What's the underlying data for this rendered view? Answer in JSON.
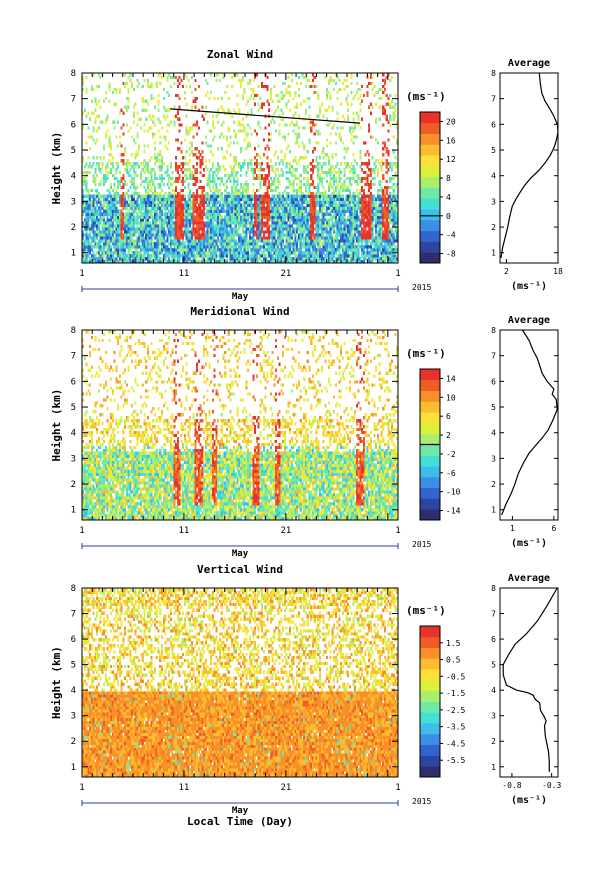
{
  "chart_data": [
    {
      "type": "heatmap",
      "title": "Zonal Wind",
      "ylabel": "Height (km)",
      "ylim": [
        0.6,
        8
      ],
      "yticks": [
        1,
        2,
        3,
        4,
        5,
        6,
        7,
        8
      ],
      "xticks": [
        "1",
        "11",
        "21",
        "1"
      ],
      "month_label": "May",
      "year_label": "2015",
      "colorbar": {
        "unit": "(ms⁻¹)",
        "range": [
          -10,
          22
        ],
        "labels": [
          20,
          16,
          12,
          8,
          4,
          0,
          -4,
          -8
        ],
        "zero_line": 0
      },
      "average": {
        "title": "Average",
        "xlabel": "(ms⁻¹)",
        "xticks": [
          "2",
          "18"
        ],
        "xlim": [
          0,
          18
        ],
        "ylim": [
          0.6,
          8
        ],
        "x": [
          0.3,
          0.8,
          1.6,
          2.4,
          3.0,
          3.8,
          5.0,
          6.2,
          7.5,
          9.5,
          12.0,
          14.0,
          15.6,
          16.8,
          17.5,
          18.0,
          17.8,
          16.8,
          15.5,
          14.0,
          13.0,
          12.5,
          12.2
        ],
        "y": [
          0.8,
          1.2,
          1.6,
          2.0,
          2.4,
          2.8,
          3.1,
          3.35,
          3.6,
          3.9,
          4.2,
          4.5,
          4.8,
          5.1,
          5.4,
          5.7,
          6.0,
          6.3,
          6.6,
          6.9,
          7.2,
          7.6,
          8.0
        ]
      }
    },
    {
      "type": "heatmap",
      "title": "Meridional Wind",
      "ylabel": "Height (km)",
      "ylim": [
        0.6,
        8
      ],
      "yticks": [
        1,
        2,
        3,
        4,
        5,
        6,
        7,
        8
      ],
      "xticks": [
        "1",
        "11",
        "21",
        "1"
      ],
      "month_label": "May",
      "year_label": "2015",
      "colorbar": {
        "unit": "(ms⁻¹)",
        "range": [
          -16,
          16
        ],
        "labels": [
          14,
          10,
          6,
          2,
          -2,
          -6,
          -10,
          -14
        ],
        "zero_line": 0
      },
      "average": {
        "title": "Average",
        "xlabel": "(ms⁻¹)",
        "xticks": [
          "1",
          "6"
        ],
        "xlim": [
          -0.5,
          6.5
        ],
        "ylim": [
          0.6,
          8
        ],
        "x": [
          -0.3,
          0.2,
          0.8,
          1.3,
          1.7,
          2.3,
          3.0,
          3.8,
          4.6,
          5.3,
          5.9,
          6.4,
          6.3,
          5.8,
          6.0,
          5.2,
          4.6,
          4.3,
          4.0,
          3.5,
          3.0,
          2.2
        ],
        "y": [
          0.8,
          1.2,
          1.6,
          2.0,
          2.4,
          2.8,
          3.2,
          3.5,
          3.8,
          4.1,
          4.5,
          4.9,
          5.3,
          5.5,
          5.7,
          6.0,
          6.3,
          6.6,
          6.9,
          7.2,
          7.6,
          8.0
        ]
      }
    },
    {
      "type": "heatmap",
      "title": "Vertical Wind",
      "ylabel": "Height (km)",
      "xlabel": "Local Time (Day)",
      "ylim": [
        0.6,
        8
      ],
      "yticks": [
        1,
        2,
        3,
        4,
        5,
        6,
        7,
        8
      ],
      "xticks": [
        "1",
        "11",
        "21",
        "1"
      ],
      "month_label": "May",
      "year_label": "2015",
      "colorbar": {
        "unit": "(ms⁻¹)",
        "range": [
          -6.5,
          2.5
        ],
        "labels": [
          1.5,
          0.5,
          -0.5,
          -1.5,
          -2.5,
          -3.5,
          -4.5,
          -5.5
        ]
      },
      "average": {
        "title": "Average",
        "xlabel": "(ms⁻¹)",
        "xticks": [
          "-0.8",
          "-0.3"
        ],
        "xlim": [
          -0.95,
          -0.22
        ],
        "ylim": [
          0.6,
          8
        ],
        "x": [
          -0.33,
          -0.33,
          -0.34,
          -0.36,
          -0.38,
          -0.39,
          -0.37,
          -0.4,
          -0.44,
          -0.45,
          -0.49,
          -0.52,
          -0.53,
          -0.6,
          -0.74,
          -0.87,
          -0.91,
          -0.91,
          -0.84,
          -0.76,
          -0.62,
          -0.48,
          -0.36,
          -0.23
        ],
        "y": [
          0.8,
          1.2,
          1.6,
          1.9,
          2.2,
          2.6,
          2.8,
          3.0,
          3.2,
          3.5,
          3.6,
          3.7,
          3.8,
          3.9,
          4.0,
          4.2,
          4.6,
          5.0,
          5.4,
          5.8,
          6.2,
          6.7,
          7.3,
          8.0
        ]
      }
    }
  ],
  "colormap": [
    "#2d2f6b",
    "#2d45a0",
    "#3264cf",
    "#3d8ee6",
    "#3fbde9",
    "#45dfd6",
    "#6fe9a6",
    "#a9ef6e",
    "#dcf03c",
    "#fbe23b",
    "#fbbd2f",
    "#f8902a",
    "#f15b28",
    "#e8322b"
  ]
}
